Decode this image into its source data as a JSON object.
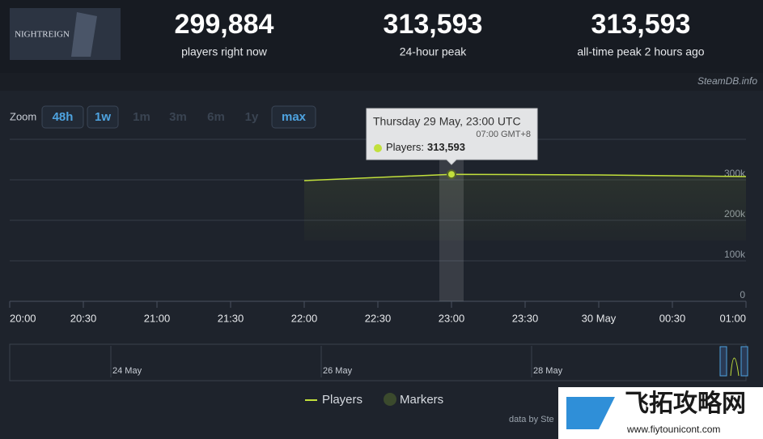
{
  "header": {
    "game_title": "NIGHTREIGN",
    "stats": [
      {
        "value": "299,884",
        "label": "players right now"
      },
      {
        "value": "313,593",
        "label": "24-hour peak"
      },
      {
        "value": "313,593",
        "label": "all-time peak 2 hours ago"
      }
    ],
    "source": "SteamDB.info"
  },
  "zoom": {
    "label": "Zoom",
    "buttons": [
      "48h",
      "1w",
      "1m",
      "3m",
      "6m",
      "1y",
      "max"
    ]
  },
  "chart_data": {
    "type": "line",
    "x": [
      22,
      23,
      24,
      25
    ],
    "series": [
      {
        "name": "Players",
        "color": "#c2e03c",
        "values": [
          298000,
          313593,
          312000,
          308000
        ],
        "value_labels": [
          null,
          "313,593",
          null,
          null
        ]
      }
    ],
    "markers_name": "Markers",
    "xlim": [
      20,
      25
    ],
    "xticks": [
      {
        "value": 20,
        "label": "20:00"
      },
      {
        "value": 20.5,
        "label": "20:30"
      },
      {
        "value": 21,
        "label": "21:00"
      },
      {
        "value": 21.5,
        "label": "21:30"
      },
      {
        "value": 22,
        "label": "22:00"
      },
      {
        "value": 22.5,
        "label": "22:30"
      },
      {
        "value": 23,
        "label": "23:00"
      },
      {
        "value": 23.5,
        "label": "23:30"
      },
      {
        "value": 24,
        "label": "30 May"
      },
      {
        "value": 24.5,
        "label": "00:30"
      },
      {
        "value": 25,
        "label": "01:00"
      }
    ],
    "ylim": [
      0,
      400000
    ],
    "yticks": [
      0,
      {
        "value": 100000,
        "label": "100k"
      },
      {
        "value": 200000,
        "label": "200k"
      },
      {
        "value": 300000,
        "label": "300k"
      }
    ],
    "grid": true,
    "tooltip": {
      "title": "Thursday 29 May, 23:00 UTC",
      "subtitle": "07:00 GMT+8",
      "label": "Players:"
    }
  },
  "navigator": {
    "labels": [
      "24 May",
      "26 May",
      "28 May"
    ]
  },
  "footer": {
    "credit": "data by Ste",
    "watermark": "飞拓攻略网",
    "watermark_url": "www.fiytounicont.com"
  }
}
